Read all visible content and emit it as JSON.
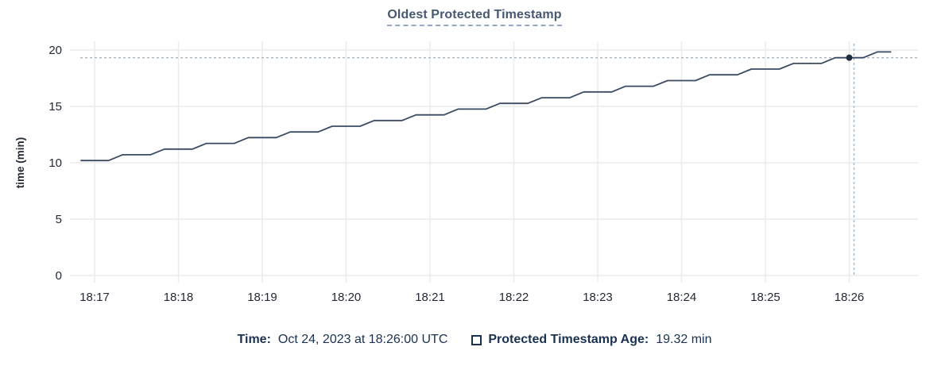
{
  "title": "Oldest Protected Timestamp",
  "y_axis": {
    "label": "time (min)",
    "ticks": [
      0,
      5,
      10,
      15,
      20
    ]
  },
  "x_axis": {
    "ticks": [
      "18:17",
      "18:18",
      "18:19",
      "18:20",
      "18:21",
      "18:22",
      "18:23",
      "18:24",
      "18:25",
      "18:26"
    ]
  },
  "footer": {
    "time_label": "Time:",
    "time_value": "Oct 24, 2023 at 18:26:00 UTC",
    "series_label": "Protected Timestamp Age:",
    "series_value": "19.32 min"
  },
  "colors": {
    "line": "#3b4a63",
    "dot": "#202c40",
    "grid": "#ececec",
    "crosshair": "#a4b7c6",
    "tick_text": "#242a35",
    "title_text": "#475872",
    "title_underline": "#93a8c6",
    "footer_text": "#1b3150"
  },
  "chart_data": {
    "type": "line",
    "title": "Oldest Protected Timestamp",
    "xlabel": "",
    "ylabel": "time (min)",
    "ylim": [
      0,
      20
    ],
    "y_ticks": [
      0,
      5,
      10,
      15,
      20
    ],
    "x_ticks": [
      "18:17",
      "18:18",
      "18:19",
      "18:20",
      "18:21",
      "18:22",
      "18:23",
      "18:24",
      "18:25",
      "18:26"
    ],
    "grid": true,
    "legend_position": "bottom",
    "crosshair": {
      "time": "18:26:00",
      "value": 19.32
    },
    "series": [
      {
        "name": "Protected Timestamp Age",
        "unit": "min",
        "x": [
          "18:16:50",
          "18:17:00",
          "18:17:10",
          "18:17:20",
          "18:17:30",
          "18:17:40",
          "18:17:50",
          "18:18:00",
          "18:18:10",
          "18:18:20",
          "18:18:30",
          "18:18:40",
          "18:18:50",
          "18:19:00",
          "18:19:10",
          "18:19:20",
          "18:19:30",
          "18:19:40",
          "18:19:50",
          "18:20:00",
          "18:20:10",
          "18:20:20",
          "18:20:30",
          "18:20:40",
          "18:20:50",
          "18:21:00",
          "18:21:10",
          "18:21:20",
          "18:21:30",
          "18:21:40",
          "18:21:50",
          "18:22:00",
          "18:22:10",
          "18:22:20",
          "18:22:30",
          "18:22:40",
          "18:22:50",
          "18:23:00",
          "18:23:10",
          "18:23:20",
          "18:23:30",
          "18:23:40",
          "18:23:50",
          "18:24:00",
          "18:24:10",
          "18:24:20",
          "18:24:30",
          "18:24:40",
          "18:24:50",
          "18:25:00",
          "18:25:10",
          "18:25:20",
          "18:25:30",
          "18:25:40",
          "18:25:50",
          "18:26:00",
          "18:26:10",
          "18:26:20",
          "18:26:30"
        ],
        "values": [
          10.2,
          10.2,
          10.2,
          10.71,
          10.71,
          10.71,
          11.21,
          11.21,
          11.21,
          11.72,
          11.72,
          11.72,
          12.23,
          12.23,
          12.23,
          12.73,
          12.73,
          12.73,
          13.24,
          13.24,
          13.24,
          13.75,
          13.75,
          13.75,
          14.25,
          14.25,
          14.25,
          14.76,
          14.76,
          14.76,
          15.27,
          15.27,
          15.27,
          15.77,
          15.77,
          15.77,
          16.28,
          16.28,
          16.28,
          16.79,
          16.79,
          16.79,
          17.29,
          17.29,
          17.29,
          17.8,
          17.8,
          17.8,
          18.31,
          18.31,
          18.31,
          18.81,
          18.81,
          18.81,
          19.32,
          19.32,
          19.32,
          19.83,
          19.83
        ]
      }
    ]
  }
}
